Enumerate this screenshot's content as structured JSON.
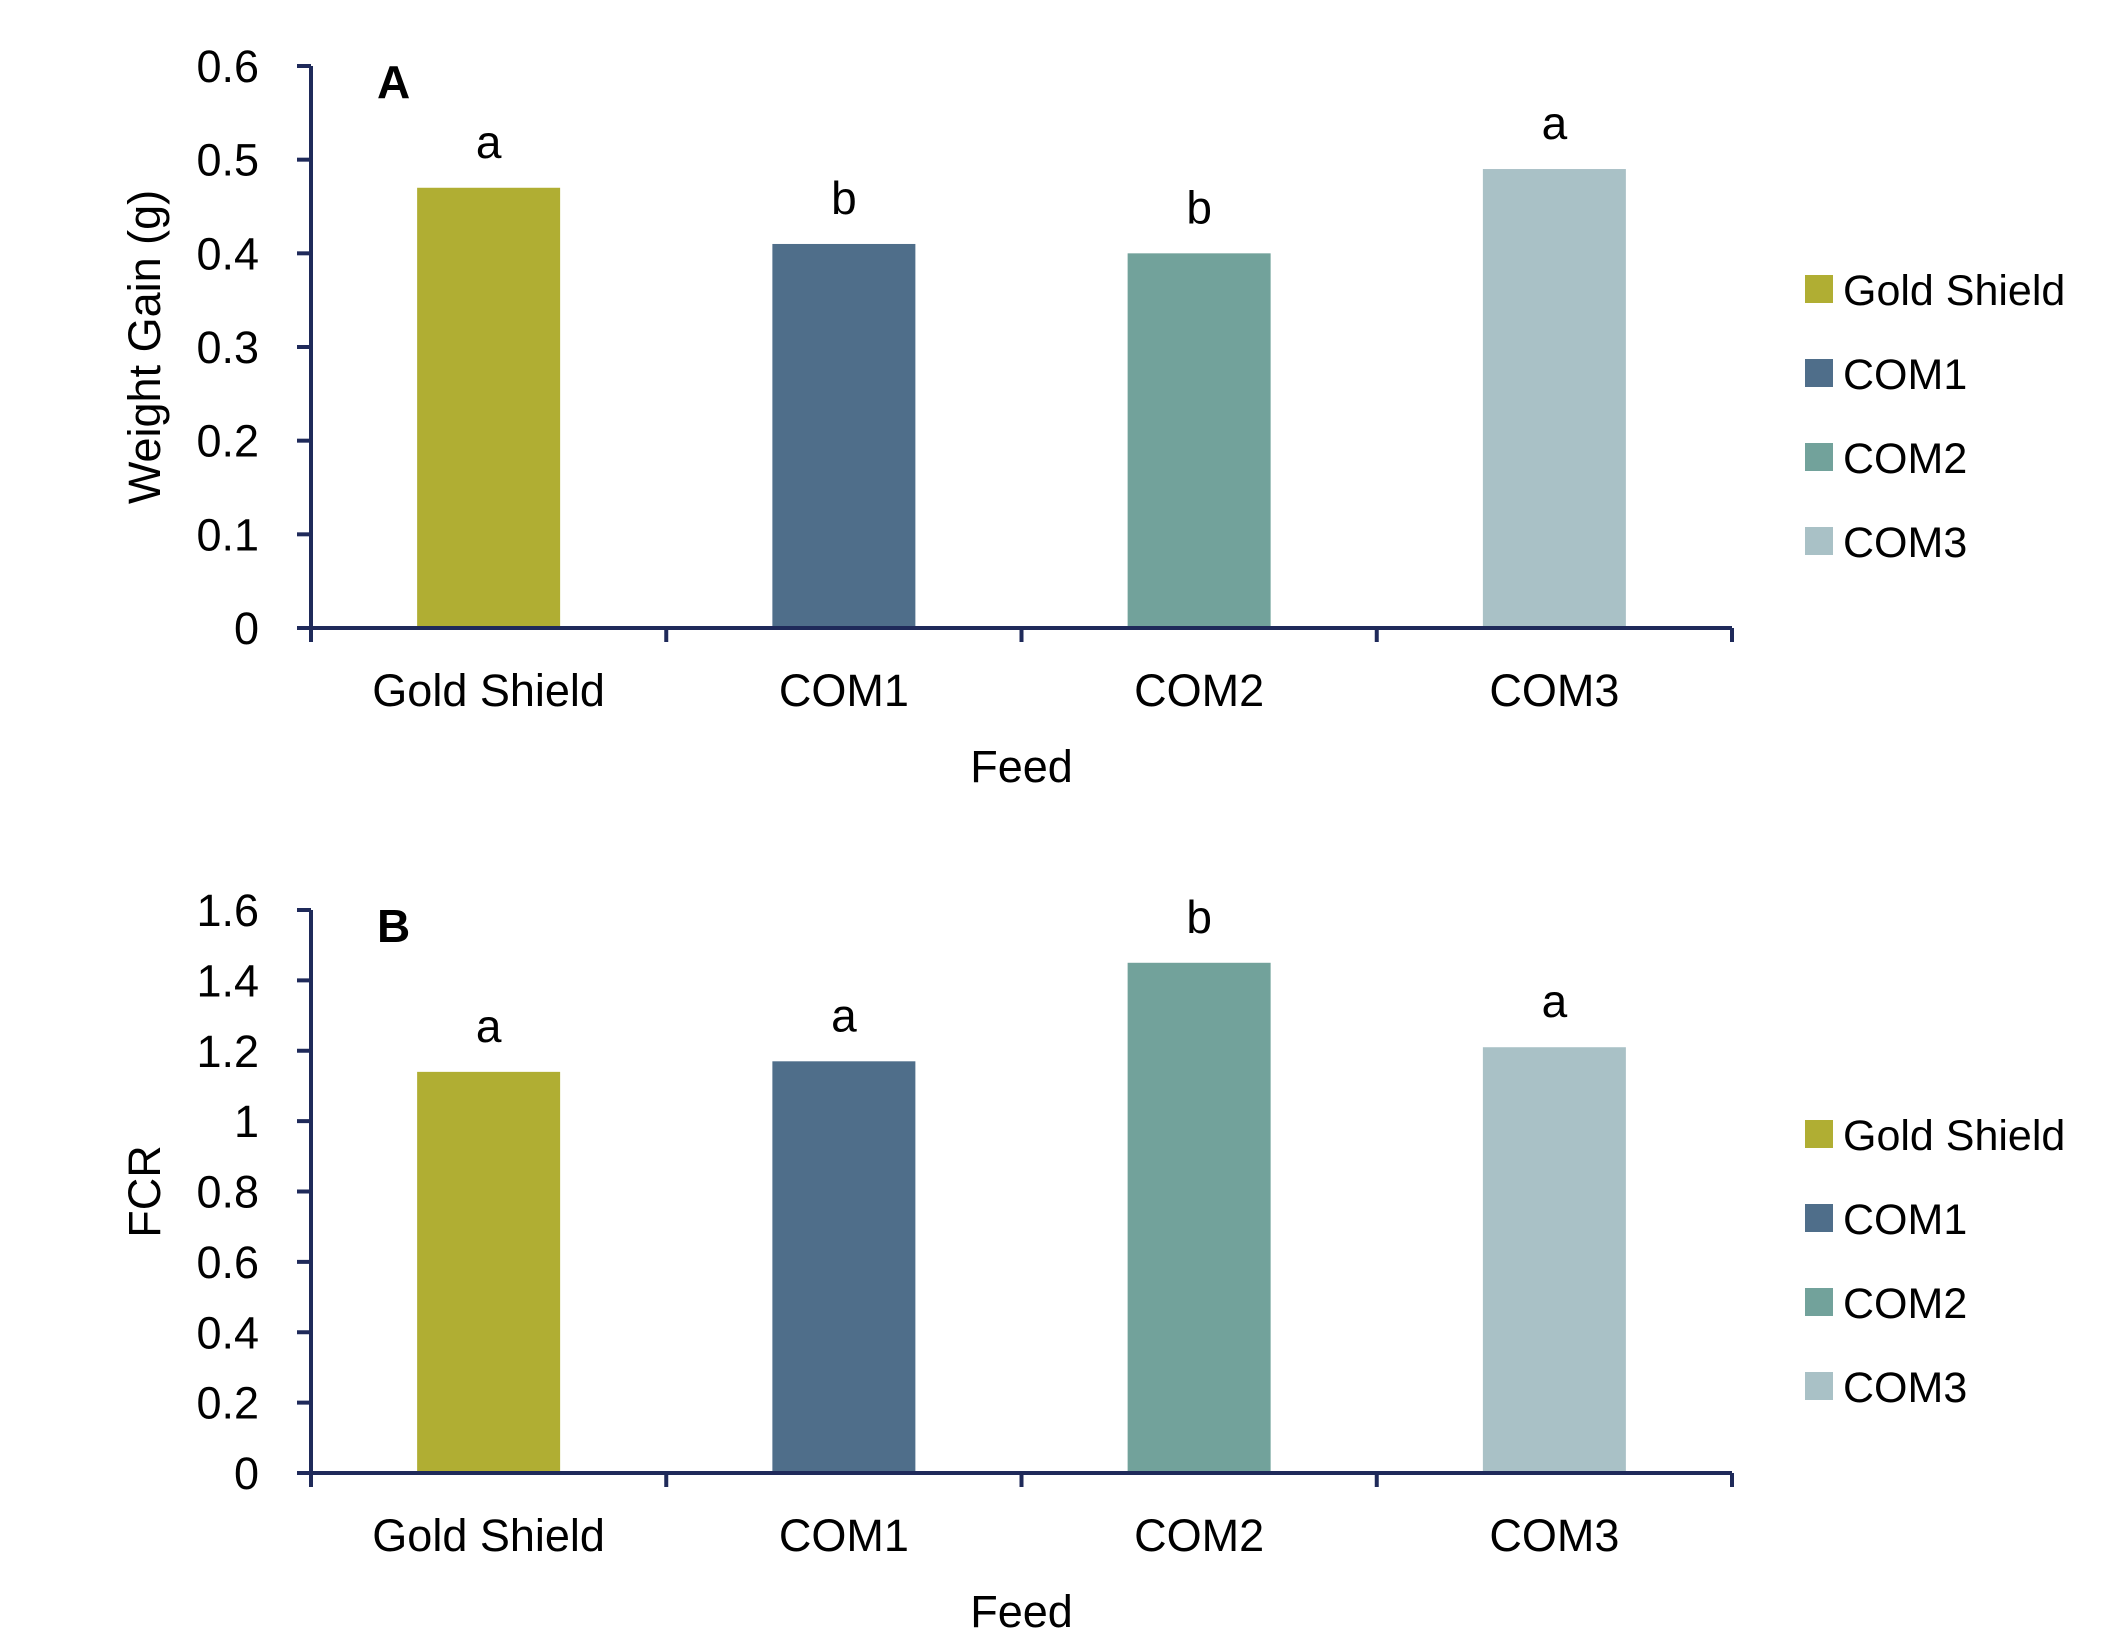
{
  "colors": {
    "axis": "#1f2a5a",
    "text": "#000000",
    "Gold Shield": "#b0ae33",
    "COM1": "#4f6e8a",
    "COM2": "#72a29b",
    "COM3": "#a9c1c6"
  },
  "chart_data": [
    {
      "panel_label": "A",
      "type": "bar",
      "categories": [
        "Gold Shield",
        "COM1",
        "COM2",
        "COM3"
      ],
      "values": [
        0.47,
        0.41,
        0.4,
        0.49
      ],
      "significance_letters": [
        "a",
        "b",
        "b",
        "a"
      ],
      "xlabel": "Feed",
      "ylabel": "Weight Gain (g)",
      "ylim": [
        0,
        0.6
      ],
      "yticks": [
        0,
        0.1,
        0.2,
        0.3,
        0.4,
        0.5,
        0.6
      ],
      "ytick_labels": [
        "0",
        "0.1",
        "0.2",
        "0.3",
        "0.4",
        "0.5",
        "0.6"
      ],
      "legend": [
        "Gold Shield",
        "COM1",
        "COM2",
        "COM3"
      ],
      "legend_position": "right",
      "grid": false
    },
    {
      "panel_label": "B",
      "type": "bar",
      "categories": [
        "Gold Shield",
        "COM1",
        "COM2",
        "COM3"
      ],
      "values": [
        1.14,
        1.17,
        1.45,
        1.21
      ],
      "significance_letters": [
        "a",
        "a",
        "b",
        "a"
      ],
      "xlabel": "Feed",
      "ylabel": "FCR",
      "ylim": [
        0,
        1.6
      ],
      "yticks": [
        0,
        0.2,
        0.4,
        0.6,
        0.8,
        1.0,
        1.2,
        1.4,
        1.6
      ],
      "ytick_labels": [
        "0",
        "0.2",
        "0.4",
        "0.6",
        "0.8",
        "1",
        "1.2",
        "1.4",
        "1.6"
      ],
      "legend": [
        "Gold Shield",
        "COM1",
        "COM2",
        "COM3"
      ],
      "legend_position": "right",
      "grid": false
    }
  ]
}
